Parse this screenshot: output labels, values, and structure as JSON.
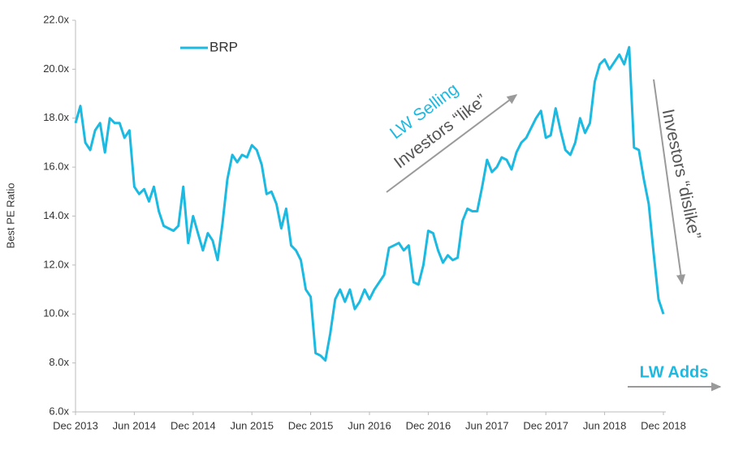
{
  "chart_data": {
    "type": "line",
    "y_label": "Best PE Ratio",
    "categories": [
      "Dec 2013",
      null,
      null,
      null,
      null,
      null,
      null,
      null,
      null,
      null,
      null,
      null,
      "Jun 2014",
      null,
      null,
      null,
      null,
      null,
      null,
      null,
      null,
      null,
      null,
      null,
      "Dec 2014",
      null,
      null,
      null,
      null,
      null,
      null,
      null,
      null,
      null,
      null,
      null,
      "Jun 2015",
      null,
      null,
      null,
      null,
      null,
      null,
      null,
      null,
      null,
      null,
      null,
      "Dec 2015",
      null,
      null,
      null,
      null,
      null,
      null,
      null,
      null,
      null,
      null,
      null,
      "Jun 2016",
      null,
      null,
      null,
      null,
      null,
      null,
      null,
      null,
      null,
      null,
      null,
      "Dec 2016",
      null,
      null,
      null,
      null,
      null,
      null,
      null,
      null,
      null,
      null,
      null,
      "Jun 2017",
      null,
      null,
      null,
      null,
      null,
      null,
      null,
      null,
      null,
      null,
      null,
      "Dec 2017",
      null,
      null,
      null,
      null,
      null,
      null,
      null,
      null,
      null,
      null,
      null,
      "Jun 2018",
      null,
      null,
      null,
      null,
      null,
      null,
      null,
      null,
      null,
      null,
      null,
      "Dec 2018"
    ],
    "series": [
      {
        "name": "BRP",
        "color": "#1cb9e1",
        "values": [
          17.8,
          18.5,
          17.0,
          16.7,
          17.5,
          17.8,
          16.6,
          18.0,
          17.8,
          17.8,
          17.2,
          17.5,
          15.2,
          14.9,
          15.1,
          14.6,
          15.2,
          14.2,
          13.6,
          13.5,
          13.4,
          13.6,
          15.2,
          12.9,
          14.0,
          13.3,
          12.6,
          13.3,
          13.0,
          12.2,
          13.7,
          15.5,
          16.5,
          16.2,
          16.5,
          16.4,
          16.9,
          16.7,
          16.1,
          14.9,
          15.0,
          14.5,
          13.5,
          14.3,
          12.8,
          12.6,
          12.2,
          11.0,
          10.7,
          8.4,
          8.3,
          8.1,
          9.2,
          10.6,
          11.0,
          10.5,
          11.0,
          10.2,
          10.5,
          11.0,
          10.6,
          11.0,
          11.3,
          11.6,
          12.7,
          12.8,
          12.9,
          12.6,
          12.8,
          11.3,
          11.2,
          12.0,
          13.4,
          13.3,
          12.6,
          12.1,
          12.4,
          12.2,
          12.3,
          13.8,
          14.3,
          14.2,
          14.2,
          15.2,
          16.3,
          15.8,
          16.0,
          16.4,
          16.3,
          15.9,
          16.6,
          17.0,
          17.2,
          17.6,
          18.0,
          18.3,
          17.2,
          17.3,
          18.4,
          17.5,
          16.7,
          16.5,
          17.0,
          18.0,
          17.4,
          17.8,
          19.5,
          20.2,
          20.4,
          20.0,
          20.3,
          20.6,
          20.2,
          20.9,
          16.8,
          16.7,
          15.5,
          14.5,
          12.5,
          10.6,
          10.0
        ]
      }
    ],
    "ylim": [
      6,
      22
    ],
    "yticks": [
      {
        "value": 6,
        "label": "6.0x"
      },
      {
        "value": 8,
        "label": "8.0x"
      },
      {
        "value": 10,
        "label": "10.0x"
      },
      {
        "value": 12,
        "label": "12.0x"
      },
      {
        "value": 14,
        "label": "14.0x"
      },
      {
        "value": 16,
        "label": "16.0x"
      },
      {
        "value": 18,
        "label": "18.0x"
      },
      {
        "value": 20,
        "label": "20.0x"
      },
      {
        "value": 22,
        "label": "22.0x"
      }
    ],
    "grid": false,
    "legend": "upper left",
    "annotations": [
      "LW Selling",
      "Investors “like”",
      "Investors “dislike”",
      "LW Adds"
    ]
  }
}
